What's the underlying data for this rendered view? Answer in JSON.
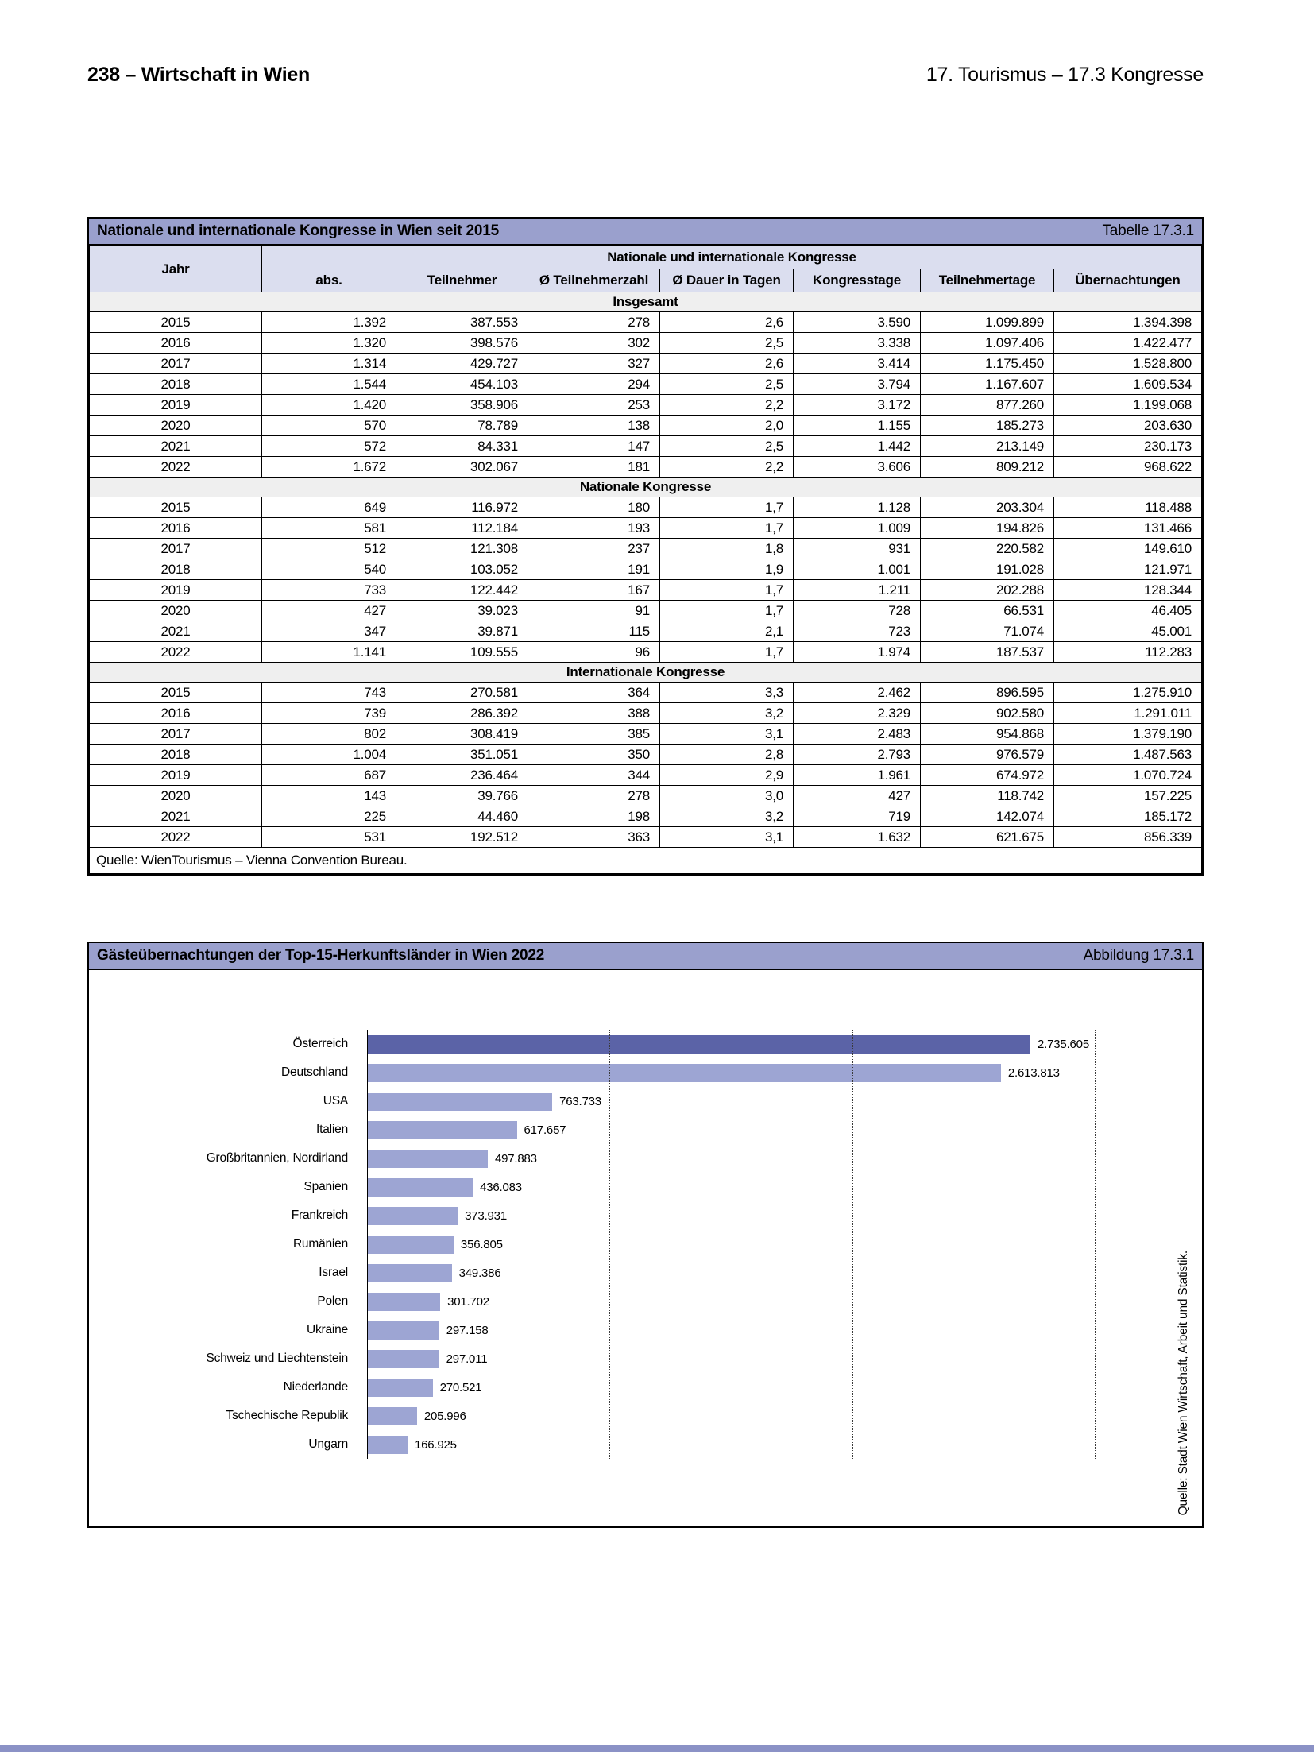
{
  "header": {
    "left": "238 – Wirtschaft in Wien",
    "right": "17. Tourismus – 17.3 Kongresse"
  },
  "colors": {
    "band": "#9aa0cd",
    "header_cell": "#dbdeef",
    "section_row": "#efefef",
    "bar_primary": "#5b63a7",
    "bar_secondary": "#9da5d3",
    "footer_band": "#8b92c6"
  },
  "table": {
    "title": "Nationale und internationale Kongresse in Wien seit 2015",
    "tag": "Tabelle 17.3.1",
    "col_year": "Jahr",
    "group_header": "Nationale und internationale Kongresse",
    "columns": [
      "abs.",
      "Teilnehmer",
      "Ø Teilnehmerzahl",
      "Ø Dauer in Tagen",
      "Kongresstage",
      "Teilnehmertage",
      "Übernachtungen"
    ],
    "sections": [
      {
        "label": "Insgesamt",
        "rows": [
          [
            "2015",
            "1.392",
            "387.553",
            "278",
            "2,6",
            "3.590",
            "1.099.899",
            "1.394.398"
          ],
          [
            "2016",
            "1.320",
            "398.576",
            "302",
            "2,5",
            "3.338",
            "1.097.406",
            "1.422.477"
          ],
          [
            "2017",
            "1.314",
            "429.727",
            "327",
            "2,6",
            "3.414",
            "1.175.450",
            "1.528.800"
          ],
          [
            "2018",
            "1.544",
            "454.103",
            "294",
            "2,5",
            "3.794",
            "1.167.607",
            "1.609.534"
          ],
          [
            "2019",
            "1.420",
            "358.906",
            "253",
            "2,2",
            "3.172",
            "877.260",
            "1.199.068"
          ],
          [
            "2020",
            "570",
            "78.789",
            "138",
            "2,0",
            "1.155",
            "185.273",
            "203.630"
          ],
          [
            "2021",
            "572",
            "84.331",
            "147",
            "2,5",
            "1.442",
            "213.149",
            "230.173"
          ],
          [
            "2022",
            "1.672",
            "302.067",
            "181",
            "2,2",
            "3.606",
            "809.212",
            "968.622"
          ]
        ]
      },
      {
        "label": "Nationale Kongresse",
        "rows": [
          [
            "2015",
            "649",
            "116.972",
            "180",
            "1,7",
            "1.128",
            "203.304",
            "118.488"
          ],
          [
            "2016",
            "581",
            "112.184",
            "193",
            "1,7",
            "1.009",
            "194.826",
            "131.466"
          ],
          [
            "2017",
            "512",
            "121.308",
            "237",
            "1,8",
            "931",
            "220.582",
            "149.610"
          ],
          [
            "2018",
            "540",
            "103.052",
            "191",
            "1,9",
            "1.001",
            "191.028",
            "121.971"
          ],
          [
            "2019",
            "733",
            "122.442",
            "167",
            "1,7",
            "1.211",
            "202.288",
            "128.344"
          ],
          [
            "2020",
            "427",
            "39.023",
            "91",
            "1,7",
            "728",
            "66.531",
            "46.405"
          ],
          [
            "2021",
            "347",
            "39.871",
            "115",
            "2,1",
            "723",
            "71.074",
            "45.001"
          ],
          [
            "2022",
            "1.141",
            "109.555",
            "96",
            "1,7",
            "1.974",
            "187.537",
            "112.283"
          ]
        ]
      },
      {
        "label": "Internationale Kongresse",
        "rows": [
          [
            "2015",
            "743",
            "270.581",
            "364",
            "3,3",
            "2.462",
            "896.595",
            "1.275.910"
          ],
          [
            "2016",
            "739",
            "286.392",
            "388",
            "3,2",
            "2.329",
            "902.580",
            "1.291.011"
          ],
          [
            "2017",
            "802",
            "308.419",
            "385",
            "3,1",
            "2.483",
            "954.868",
            "1.379.190"
          ],
          [
            "2018",
            "1.004",
            "351.051",
            "350",
            "2,8",
            "2.793",
            "976.579",
            "1.487.563"
          ],
          [
            "2019",
            "687",
            "236.464",
            "344",
            "2,9",
            "1.961",
            "674.972",
            "1.070.724"
          ],
          [
            "2020",
            "143",
            "39.766",
            "278",
            "3,0",
            "427",
            "118.742",
            "157.225"
          ],
          [
            "2021",
            "225",
            "44.460",
            "198",
            "3,2",
            "719",
            "142.074",
            "185.172"
          ],
          [
            "2022",
            "531",
            "192.512",
            "363",
            "3,1",
            "1.632",
            "621.675",
            "856.339"
          ]
        ]
      }
    ],
    "source": "Quelle: WienTourismus – Vienna Convention Bureau."
  },
  "figure": {
    "title": "Gästeübernachtungen der Top-15-Herkunftsländer in Wien 2022",
    "tag": "Abbildung 17.3.1",
    "source_vertical": "Quelle: Stadt Wien Wirtschaft, Arbeit und Statistik."
  },
  "chart_data": {
    "type": "bar",
    "orientation": "horizontal",
    "title": "Gästeübernachtungen der Top-15-Herkunftsländer in Wien 2022",
    "categories": [
      "Österreich",
      "Deutschland",
      "USA",
      "Italien",
      "Großbritannien, Nordirland",
      "Spanien",
      "Frankreich",
      "Rumänien",
      "Israel",
      "Polen",
      "Ukraine",
      "Schweiz und Liechtenstein",
      "Niederlande",
      "Tschechische Republik",
      "Ungarn"
    ],
    "values": [
      2735605,
      2613813,
      763733,
      617657,
      497883,
      436083,
      373931,
      356805,
      349386,
      301702,
      297158,
      297011,
      270521,
      205996,
      166925
    ],
    "values_formatted": [
      "2.735.605",
      "2.613.813",
      "763.733",
      "617.657",
      "497.883",
      "436.083",
      "373.931",
      "356.805",
      "349.386",
      "301.702",
      "297.158",
      "297.011",
      "270.521",
      "205.996",
      "166.925"
    ],
    "xlabel": "",
    "ylabel": "",
    "xlim": [
      0,
      3371000
    ],
    "gridlines": [
      1000000,
      2000000,
      3000000
    ],
    "grid_style": "dotted-vertical",
    "legend": "none"
  }
}
